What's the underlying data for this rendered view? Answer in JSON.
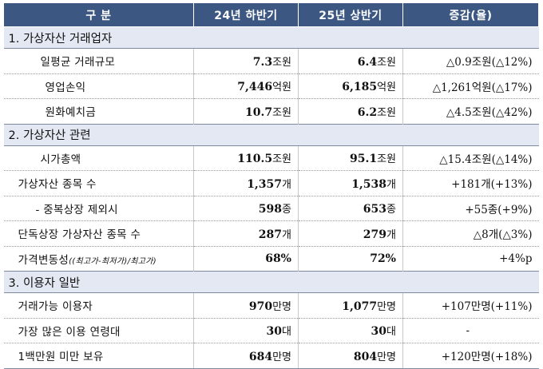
{
  "header": {
    "col1": "구 분",
    "col2": "24년 하반기",
    "col3": "25년 상반기",
    "col4": "증감(율)"
  },
  "sections": [
    {
      "title": "1. 가상자산 거래업자",
      "rows": [
        {
          "label": "일평균 거래규모",
          "v1": "7.3",
          "u1": "조원",
          "v2": "6.4",
          "u2": "조원",
          "chg": "△0.9조원(△12%)"
        },
        {
          "label": "영업손익",
          "v1": "7,446",
          "u1": "억원",
          "v2": "6,185",
          "u2": "억원",
          "chg": "△1,261억원(△17%)"
        },
        {
          "label": "원화예치금",
          "v1": "10.7",
          "u1": "조원",
          "v2": "6.2",
          "u2": "조원",
          "chg": "△4.5조원(△42%)"
        }
      ]
    },
    {
      "title": "2. 가상자산 관련",
      "rows": [
        {
          "label": "시가총액",
          "v1": "110.5",
          "u1": "조원",
          "v2": "95.1",
          "u2": "조원",
          "chg": "△15.4조원(△14%)"
        },
        {
          "label": "가상자산 종목 수",
          "v1": "1,357",
          "u1": "개",
          "v2": "1,538",
          "u2": "개",
          "chg": "+181개(+13%)"
        },
        {
          "label": "- 중복상장 제외시",
          "v1": "598",
          "u1": "종",
          "v2": "653",
          "u2": "종",
          "chg": "+55종(+9%)"
        },
        {
          "label": "단독상장 가상자산 종목 수",
          "v1": "287",
          "u1": "개",
          "v2": "279",
          "u2": "개",
          "chg": "△8개(△3%)"
        },
        {
          "label": "가격변동성",
          "label_small": "((최고가-최저가)/최고가)",
          "v1": "68%",
          "u1": "",
          "v2": "72%",
          "u2": "",
          "chg": "+4%p"
        }
      ]
    },
    {
      "title": "3. 이용자 일반",
      "rows": [
        {
          "label": "거래가능 이용자",
          "v1": "970",
          "u1": "만명",
          "v2": "1,077",
          "u2": "만명",
          "chg": "+107만명(+11%)"
        },
        {
          "label": "가장 많은 이용 연령대",
          "v1": "30",
          "u1": "대",
          "v2": "30",
          "u2": "대",
          "chg": "-"
        },
        {
          "label": "1백만원 미만 보유",
          "v1": "684",
          "u1": "만명",
          "v2": "804",
          "u2": "만명",
          "chg": "+120만명(+18%)"
        }
      ]
    }
  ]
}
